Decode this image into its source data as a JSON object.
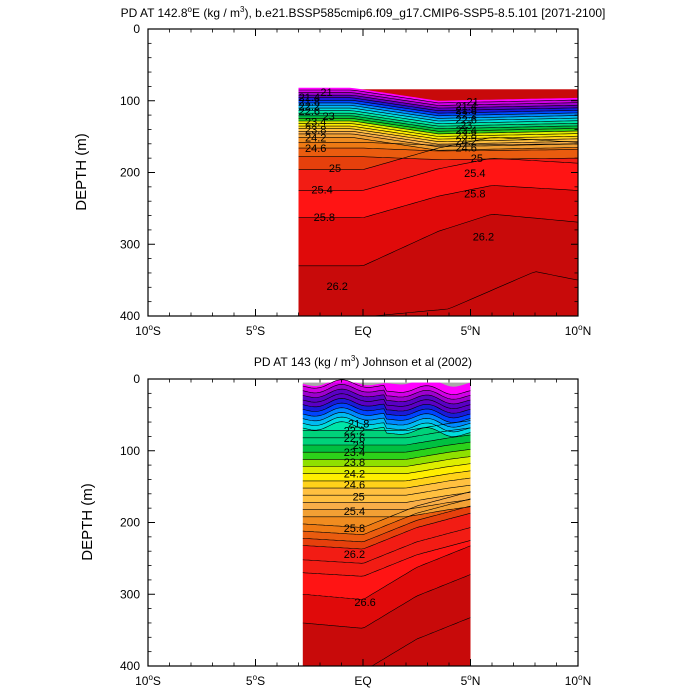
{
  "chart_data": [
    {
      "id": "top",
      "type": "contour",
      "title": "PD AT 142.8°E (kg / m³), b.e21.BSSP585cmip6.f09_g17.CMIP6-SSP5-8.5.101 [2071-2100]",
      "title_parts": {
        "pre": "PD AT 142.8",
        "deg": "o",
        "mid": "E (kg / m",
        "sup": "3",
        "post": "), b.e21.BSSP585cmip6.f09_g17.CMIP6-SSP5-8.5.101 [2071-2100]"
      },
      "ylabel": "DEPTH (m)",
      "xlim": [
        -10,
        10
      ],
      "ylim": [
        0,
        400
      ],
      "y_inverted": true,
      "x_ticks": [
        {
          "value": -10,
          "main": "10",
          "deg": "o",
          "hemi": "S"
        },
        {
          "value": -5,
          "main": "5",
          "deg": "o",
          "hemi": "S"
        },
        {
          "value": 0,
          "main": "EQ",
          "deg": "",
          "hemi": ""
        },
        {
          "value": 5,
          "main": "5",
          "deg": "o",
          "hemi": "N"
        },
        {
          "value": 10,
          "main": "10",
          "deg": "o",
          "hemi": "N"
        }
      ],
      "y_ticks": [
        0,
        100,
        200,
        300,
        400
      ],
      "data_x_range": [
        -3,
        10
      ],
      "grid": false,
      "contour_labels": [
        {
          "text": "21",
          "lat": -1.7,
          "depth": 88
        },
        {
          "text": "21.4",
          "lat": -2.5,
          "depth": 95
        },
        {
          "text": "21.8",
          "lat": -2.5,
          "depth": 101
        },
        {
          "text": "22.2",
          "lat": -2.5,
          "depth": 107
        },
        {
          "text": "22.6",
          "lat": -2.5,
          "depth": 114
        },
        {
          "text": "23",
          "lat": -1.6,
          "depth": 121
        },
        {
          "text": "23.4",
          "lat": -2.2,
          "depth": 129
        },
        {
          "text": "23.8",
          "lat": -2.2,
          "depth": 140
        },
        {
          "text": "24.2",
          "lat": -2.2,
          "depth": 151
        },
        {
          "text": "24.6",
          "lat": -2.2,
          "depth": 166
        },
        {
          "text": "25",
          "lat": -1.3,
          "depth": 194
        },
        {
          "text": "25.4",
          "lat": -1.9,
          "depth": 224
        },
        {
          "text": "25.8",
          "lat": -1.8,
          "depth": 262
        },
        {
          "text": "26.2",
          "lat": -1.2,
          "depth": 358
        },
        {
          "text": "21",
          "lat": 5.1,
          "depth": 101
        },
        {
          "text": "21.4",
          "lat": 4.8,
          "depth": 107
        },
        {
          "text": "21.8",
          "lat": 4.8,
          "depth": 113
        },
        {
          "text": "22.2",
          "lat": 4.8,
          "depth": 119
        },
        {
          "text": "22.6",
          "lat": 4.8,
          "depth": 126
        },
        {
          "text": "23",
          "lat": 4.8,
          "depth": 134
        },
        {
          "text": "23.4",
          "lat": 4.8,
          "depth": 141
        },
        {
          "text": "23.8",
          "lat": 4.8,
          "depth": 148
        },
        {
          "text": "24.2",
          "lat": 4.8,
          "depth": 156
        },
        {
          "text": "24.6",
          "lat": 4.8,
          "depth": 165
        },
        {
          "text": "25",
          "lat": 5.3,
          "depth": 180
        },
        {
          "text": "25.4",
          "lat": 5.2,
          "depth": 201
        },
        {
          "text": "25.8",
          "lat": 5.2,
          "depth": 229
        },
        {
          "text": "26.2",
          "lat": 5.6,
          "depth": 289
        }
      ]
    },
    {
      "id": "bottom",
      "type": "contour",
      "title": "PD AT 143 (kg / m³) Johnson et al (2002)",
      "title_parts": {
        "pre": "PD AT 143 (kg / m",
        "deg": "",
        "mid": "",
        "sup": "3",
        "post": ") Johnson et al (2002)"
      },
      "ylabel": "DEPTH (m)",
      "xlim": [
        -10,
        10
      ],
      "ylim": [
        0,
        400
      ],
      "y_inverted": true,
      "x_ticks": [
        {
          "value": -10,
          "main": "10",
          "deg": "o",
          "hemi": "S"
        },
        {
          "value": -5,
          "main": "5",
          "deg": "o",
          "hemi": "S"
        },
        {
          "value": 0,
          "main": "EQ",
          "deg": "",
          "hemi": ""
        },
        {
          "value": 5,
          "main": "5",
          "deg": "o",
          "hemi": "N"
        },
        {
          "value": 10,
          "main": "10",
          "deg": "o",
          "hemi": "N"
        }
      ],
      "y_ticks": [
        0,
        100,
        200,
        300,
        400
      ],
      "data_x_range": [
        -2.8,
        5
      ],
      "grid": false,
      "contour_labels": [
        {
          "text": "21.8",
          "lat": -0.2,
          "depth": 62
        },
        {
          "text": "22.2",
          "lat": -0.4,
          "depth": 72
        },
        {
          "text": "22.6",
          "lat": -0.4,
          "depth": 82
        },
        {
          "text": "23",
          "lat": -0.2,
          "depth": 92
        },
        {
          "text": "23.4",
          "lat": -0.4,
          "depth": 102
        },
        {
          "text": "23.8",
          "lat": -0.4,
          "depth": 116
        },
        {
          "text": "24.2",
          "lat": -0.4,
          "depth": 132
        },
        {
          "text": "24.6",
          "lat": -0.4,
          "depth": 147
        },
        {
          "text": "25",
          "lat": -0.2,
          "depth": 164
        },
        {
          "text": "25.4",
          "lat": -0.4,
          "depth": 184
        },
        {
          "text": "25.8",
          "lat": -0.4,
          "depth": 208
        },
        {
          "text": "26.2",
          "lat": -0.4,
          "depth": 244
        },
        {
          "text": "26.6",
          "lat": 0.1,
          "depth": 311
        }
      ]
    }
  ],
  "colors": {
    "missing": "#a8a8a8",
    "contour_line": "#000000",
    "levels": [
      "#ff00ff",
      "#d100e6",
      "#9d00ce",
      "#5a00c4",
      "#1a1ad8",
      "#0044ff",
      "#0088ff",
      "#00bbf2",
      "#00dddd",
      "#00e6a8",
      "#00d27a",
      "#00c040",
      "#2cd11a",
      "#8fe000",
      "#ddee00",
      "#ffee00",
      "#ffd21a",
      "#ffc040",
      "#f8ae48",
      "#f2a034",
      "#f08c20",
      "#ee7a14",
      "#ea5c0f",
      "#e6400c",
      "#f21c14",
      "#ff1414",
      "#e00a0a",
      "#c80a0a"
    ]
  }
}
